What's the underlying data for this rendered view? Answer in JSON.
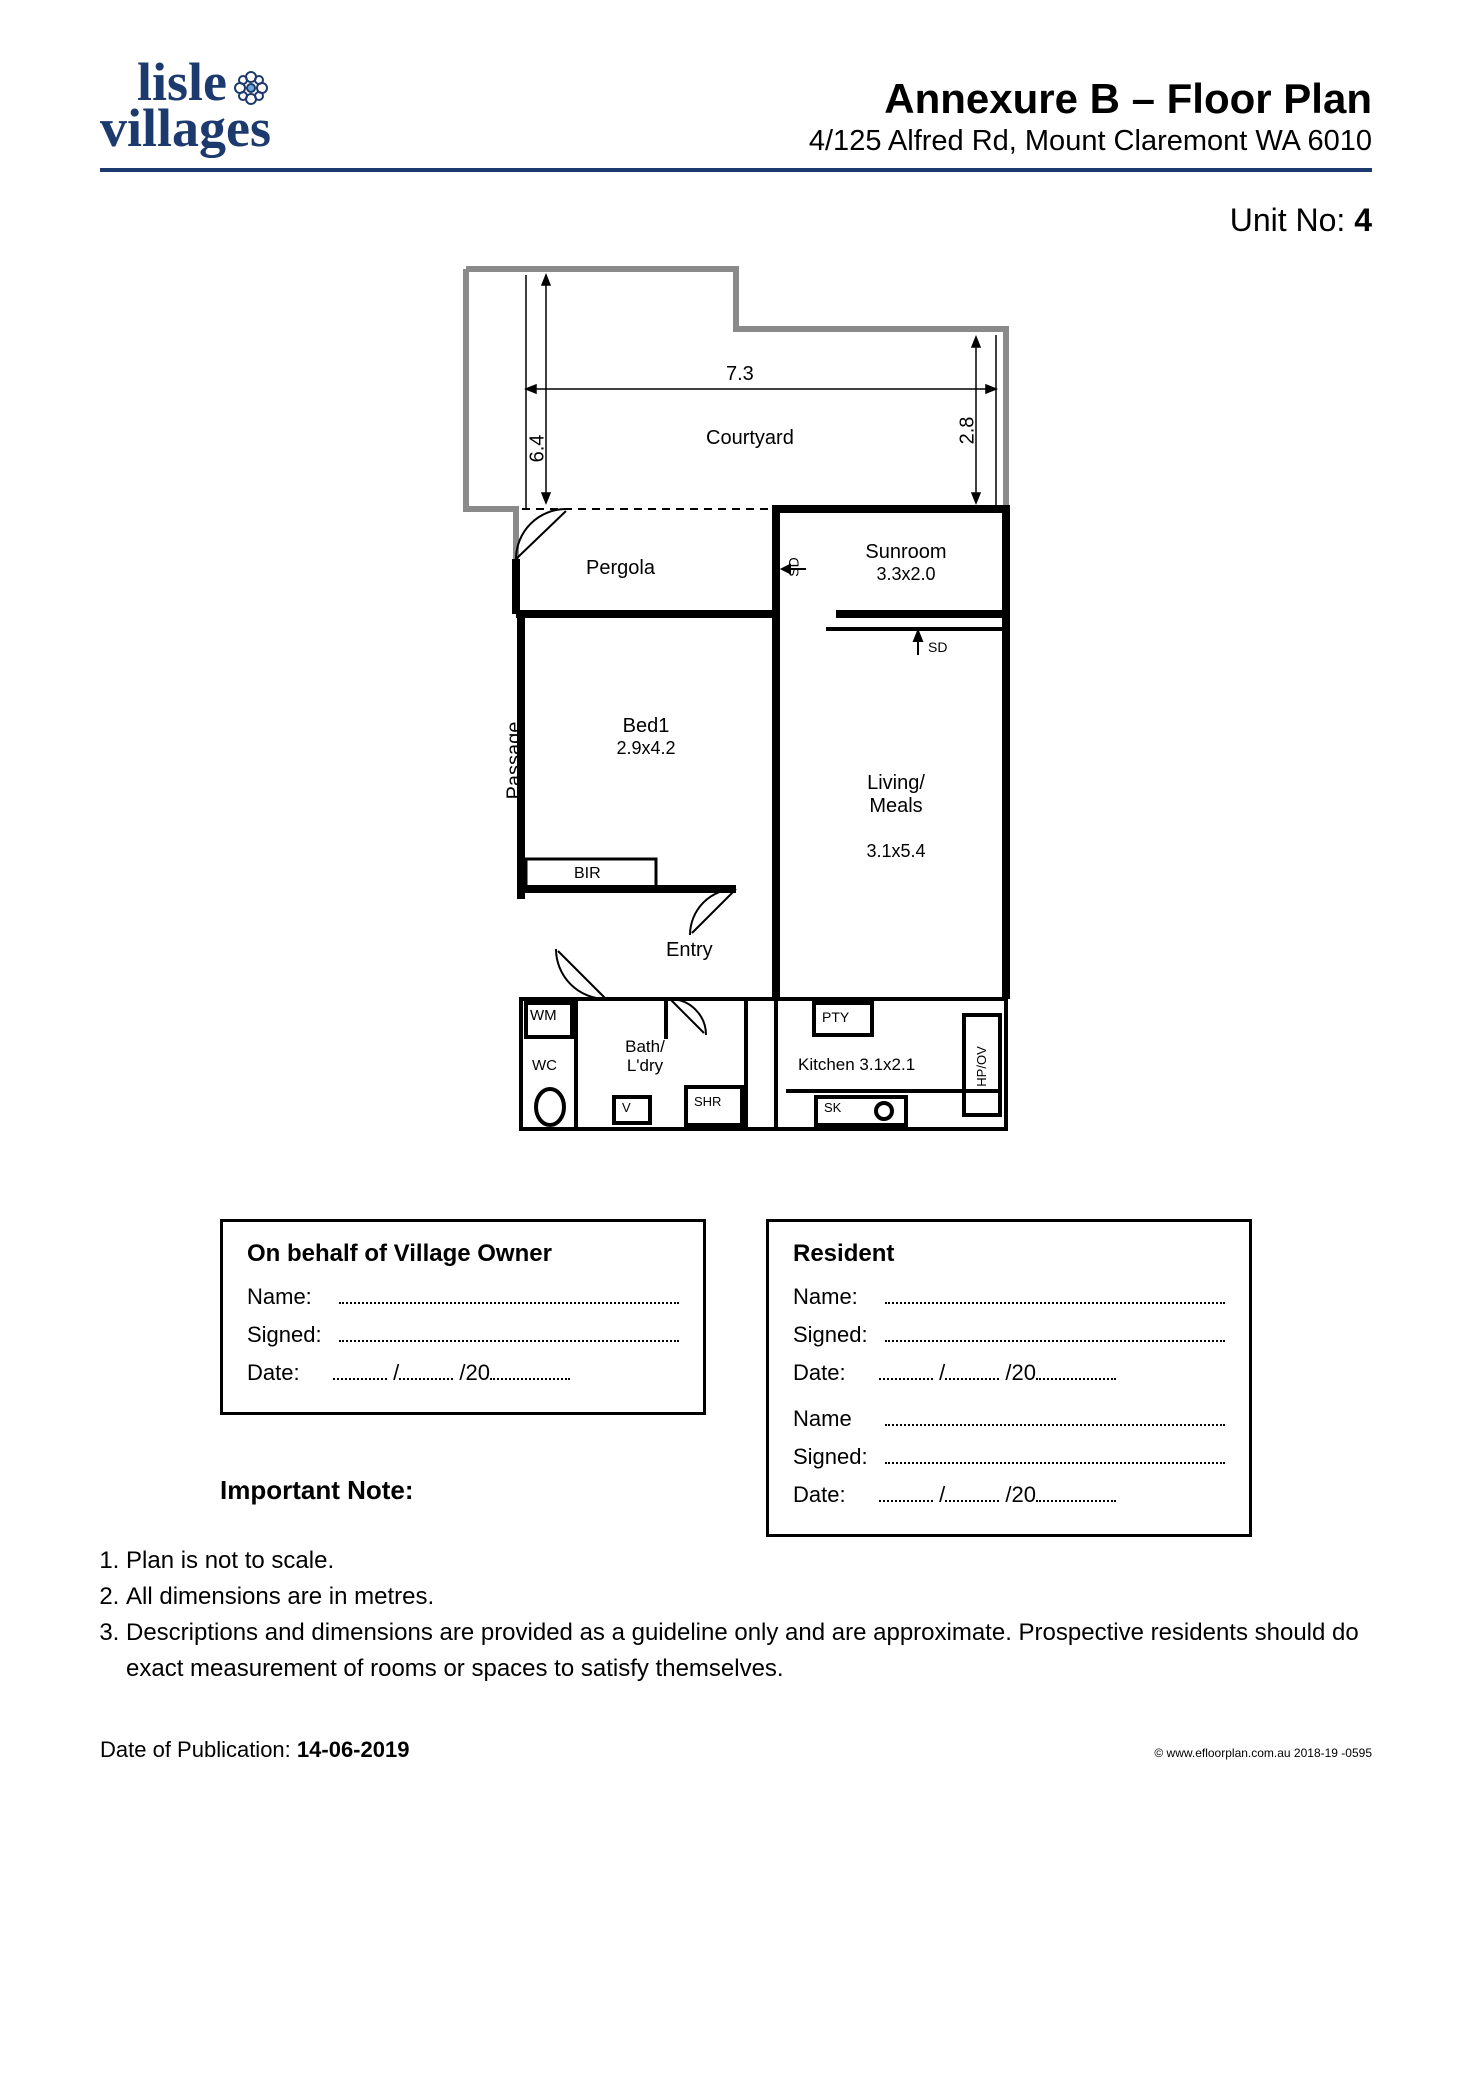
{
  "brand_color": "#1d3a6e",
  "logo": {
    "line1": "lisle",
    "line2": "villages"
  },
  "header": {
    "title": "Annexure B – Floor Plan",
    "address": "4/125 Alfred Rd, Mount Claremont WA 6010"
  },
  "unit": {
    "label": "Unit No:",
    "value": "4"
  },
  "floorplan": {
    "overall_width_label": "7.3",
    "dim_64": "6.4",
    "dim_28": "2.8",
    "rooms": {
      "courtyard": {
        "label": "Courtyard"
      },
      "pergola": {
        "label": "Pergola"
      },
      "sunroom": {
        "label": "Sunroom",
        "dim": "3.3x2.0"
      },
      "bed1": {
        "label": "Bed1",
        "dim": "2.9x4.2"
      },
      "living": {
        "label": "Living/\nMeals",
        "dim": "3.1x5.4"
      },
      "entry": {
        "label": "Entry"
      },
      "bir": {
        "label": "BIR"
      },
      "bath": {
        "label": "Bath/\nL'dry"
      },
      "wc_label": "WC",
      "wm_label": "WM",
      "shr_label": "SHR",
      "v_label": "V",
      "kitchen": {
        "label": "Kitchen 3.1x2.1"
      },
      "pty": "PTY",
      "hpov": "HP/OV",
      "sk": "SK",
      "sd": "SD",
      "passage": "Passage"
    }
  },
  "sig": {
    "owner_title": "On behalf of Village Owner",
    "resident_title": "Resident",
    "name": "Name:",
    "name2": "Name",
    "signed": "Signed:",
    "date": "Date:",
    "year_prefix": "20"
  },
  "notes": {
    "heading": "Important Note:",
    "items": [
      "Plan is not to scale.",
      "All dimensions are in metres.",
      "Descriptions and dimensions are provided as a guideline only and are approximate. Prospective residents should do exact measurement of rooms or spaces to satisfy themselves."
    ]
  },
  "footer": {
    "pub_label": "Date of Publication:",
    "pub_date": "14-06-2019",
    "copyright": "© www.efloorplan.com.au 2018-19 -0595"
  }
}
